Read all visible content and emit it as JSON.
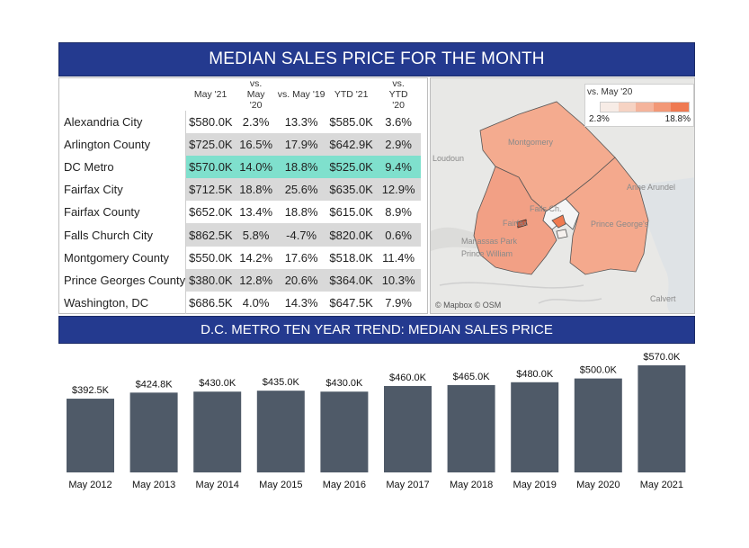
{
  "title_top": "MEDIAN SALES PRICE FOR THE MONTH",
  "title_bottom": "D.C. METRO TEN YEAR TREND: MEDIAN SALES PRICE",
  "table": {
    "headers": [
      "May '21",
      "vs. May '20",
      "vs. May '19",
      "YTD '21",
      "vs. YTD '20"
    ],
    "rows": [
      {
        "name": "Alexandria City",
        "may21": "$580.0K",
        "vs_may20": "2.3%",
        "vs_may19": "13.3%",
        "ytd21": "$585.0K",
        "vs_ytd20": "3.6%"
      },
      {
        "name": "Arlington County",
        "may21": "$725.0K",
        "vs_may20": "16.5%",
        "vs_may19": "17.9%",
        "ytd21": "$642.9K",
        "vs_ytd20": "2.9%"
      },
      {
        "name": "DC Metro",
        "may21": "$570.0K",
        "vs_may20": "14.0%",
        "vs_may19": "18.8%",
        "ytd21": "$525.0K",
        "vs_ytd20": "9.4%"
      },
      {
        "name": "Fairfax City",
        "may21": "$712.5K",
        "vs_may20": "18.8%",
        "vs_may19": "25.6%",
        "ytd21": "$635.0K",
        "vs_ytd20": "12.9%"
      },
      {
        "name": "Fairfax County",
        "may21": "$652.0K",
        "vs_may20": "13.4%",
        "vs_may19": "18.8%",
        "ytd21": "$615.0K",
        "vs_ytd20": "8.9%"
      },
      {
        "name": "Falls Church City",
        "may21": "$862.5K",
        "vs_may20": "5.8%",
        "vs_may19": "-4.7%",
        "ytd21": "$820.0K",
        "vs_ytd20": "0.6%"
      },
      {
        "name": "Montgomery County",
        "may21": "$550.0K",
        "vs_may20": "14.2%",
        "vs_may19": "17.6%",
        "ytd21": "$518.0K",
        "vs_ytd20": "11.4%"
      },
      {
        "name": "Prince Georges County",
        "may21": "$380.0K",
        "vs_may20": "12.8%",
        "vs_may19": "20.6%",
        "ytd21": "$364.0K",
        "vs_ytd20": "10.3%"
      },
      {
        "name": "Washington, DC",
        "may21": "$686.5K",
        "vs_may20": "4.0%",
        "vs_may19": "14.3%",
        "ytd21": "$647.5K",
        "vs_ytd20": "7.9%"
      }
    ]
  },
  "map": {
    "legend_title": "vs. May '20",
    "legend_min": "2.3%",
    "legend_max": "18.8%",
    "legend_colors": [
      "#f7ece6",
      "#f6d3c3",
      "#f4b49c",
      "#f29877",
      "#ef7a52"
    ],
    "labels": {
      "montgomery": "Montgomery",
      "loudoun": "Loudoun",
      "anne_arundel": "Anne Arundel",
      "prince_georges": "Prince George's",
      "fairfax": "Fairfax",
      "falls_church": "Falls Ch.",
      "manassas_park": "Manassas Park",
      "prince_william": "Prince William",
      "calvert": "Calvert"
    },
    "attribution": "© Mapbox © OSM"
  },
  "chart_data": {
    "type": "bar",
    "title": "D.C. METRO TEN YEAR TREND: MEDIAN SALES PRICE",
    "categories": [
      "May 2012",
      "May 2013",
      "May 2014",
      "May 2015",
      "May 2016",
      "May 2017",
      "May 2018",
      "May 2019",
      "May 2020",
      "May 2021"
    ],
    "values": [
      392.5,
      424.8,
      430.0,
      435.0,
      430.0,
      460.0,
      465.0,
      480.0,
      500.0,
      570.0
    ],
    "value_labels": [
      "$392.5K",
      "$424.8K",
      "$430.0K",
      "$435.0K",
      "$430.0K",
      "$460.0K",
      "$465.0K",
      "$480.0K",
      "$500.0K",
      "$570.0K"
    ],
    "bar_color": "#4f5a68",
    "grid": false
  }
}
